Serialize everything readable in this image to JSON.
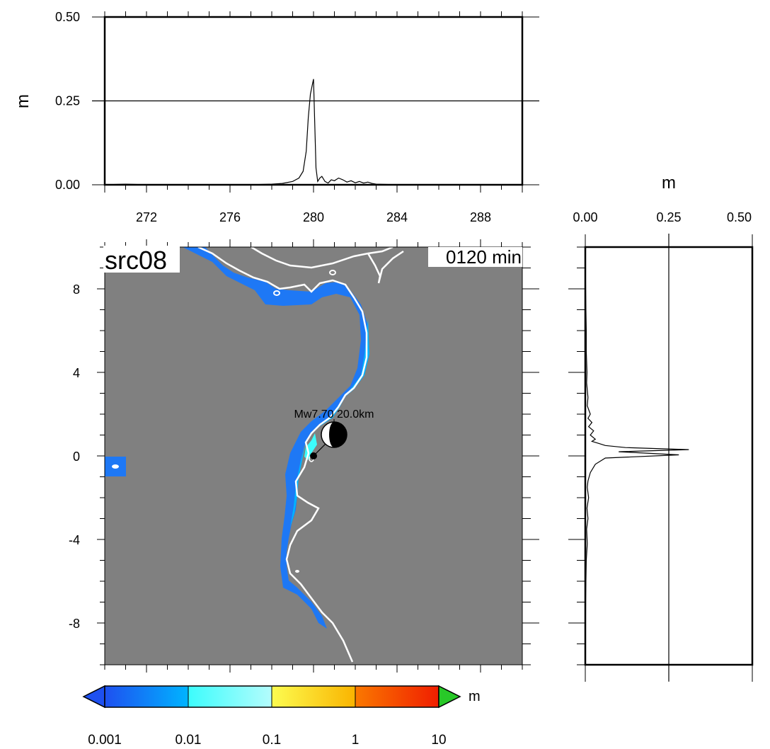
{
  "figure": {
    "source_label": "src08",
    "time_label": "0120 min",
    "event_label": "Mw7.70  20.0km"
  },
  "chart_data": [
    {
      "id": "top-profile",
      "type": "line",
      "ylabel": "m",
      "xlim": [
        270,
        290
      ],
      "ylim": [
        0,
        0.5
      ],
      "xticks": [
        272,
        276,
        280,
        284,
        288
      ],
      "yticks": [
        "0.00",
        "0.25",
        "0.50"
      ],
      "grid_y": [
        0.25
      ],
      "series": [
        {
          "x": [
            270,
            271,
            272,
            273,
            274,
            275,
            276,
            277,
            278,
            278.5,
            279,
            279.3,
            279.5,
            279.65,
            279.75,
            279.85,
            279.95,
            280.0,
            280.05,
            280.12,
            280.2,
            280.3,
            280.4,
            280.55,
            280.7,
            280.85,
            281.0,
            281.2,
            281.4,
            281.6,
            281.8,
            282.0,
            282.2,
            282.4,
            282.6,
            282.8,
            283.0,
            284,
            286,
            288,
            290
          ],
          "y": [
            0,
            0.002,
            0,
            0,
            0,
            0,
            0,
            0,
            0.002,
            0.004,
            0.01,
            0.02,
            0.04,
            0.1,
            0.2,
            0.27,
            0.3,
            0.315,
            0.2,
            0.05,
            0.01,
            0.02,
            0.025,
            0.01,
            0.005,
            0.015,
            0.012,
            0.02,
            0.015,
            0.008,
            0.012,
            0.006,
            0.01,
            0.005,
            0.008,
            0.004,
            0.002,
            0,
            0,
            0,
            0
          ]
        }
      ]
    },
    {
      "id": "side-profile",
      "type": "line",
      "xlabel": "m",
      "xlim": [
        0,
        0.5
      ],
      "ylim": [
        -10,
        10
      ],
      "xticks": [
        "0.00",
        "0.25",
        "0.50"
      ],
      "grid_x": [
        0.25
      ],
      "series": [
        {
          "y": [
            -10,
            -7,
            -6,
            -5,
            -4.2,
            -3.5,
            -3,
            -2.5,
            -2,
            -1.5,
            -1.2,
            -0.8,
            -0.4,
            -0.1,
            0.05,
            0.2,
            0.3,
            0.4,
            0.5,
            0.6,
            0.7,
            0.8,
            1,
            1.2,
            1.4,
            1.6,
            1.8,
            2,
            2.4,
            2.8,
            3.5,
            4,
            5,
            6,
            7,
            8,
            10
          ],
          "x": [
            0,
            0.001,
            0.002,
            0.003,
            0.006,
            0.004,
            0.008,
            0.005,
            0.01,
            0.006,
            0.008,
            0.015,
            0.03,
            0.06,
            0.28,
            0.1,
            0.31,
            0.12,
            0.06,
            0.04,
            0.02,
            0.03,
            0.015,
            0.025,
            0.01,
            0.02,
            0.008,
            0.015,
            0.006,
            0.008,
            0.004,
            0.005,
            0.003,
            0.003,
            0.002,
            0.001,
            0
          ]
        }
      ]
    },
    {
      "id": "map",
      "type": "heatmap",
      "xlim": [
        270,
        290
      ],
      "ylim": [
        -10,
        10
      ],
      "yticks": [
        8,
        4,
        0,
        -4,
        -8
      ],
      "colorbar": {
        "unit": "m",
        "tick_labels": [
          "0.001",
          "0.01",
          "0.1",
          "1",
          "10"
        ],
        "colors": [
          "#1e5af0",
          "#00b4ff",
          "#3cfcfc",
          "#b4fcfc",
          "#fcfc50",
          "#fab400",
          "#fa7800",
          "#f01e00",
          "#28c828"
        ]
      },
      "source_marker": {
        "x": 280,
        "y": -0.3
      },
      "beachball": {
        "x": 281,
        "y": 0.7
      }
    }
  ]
}
